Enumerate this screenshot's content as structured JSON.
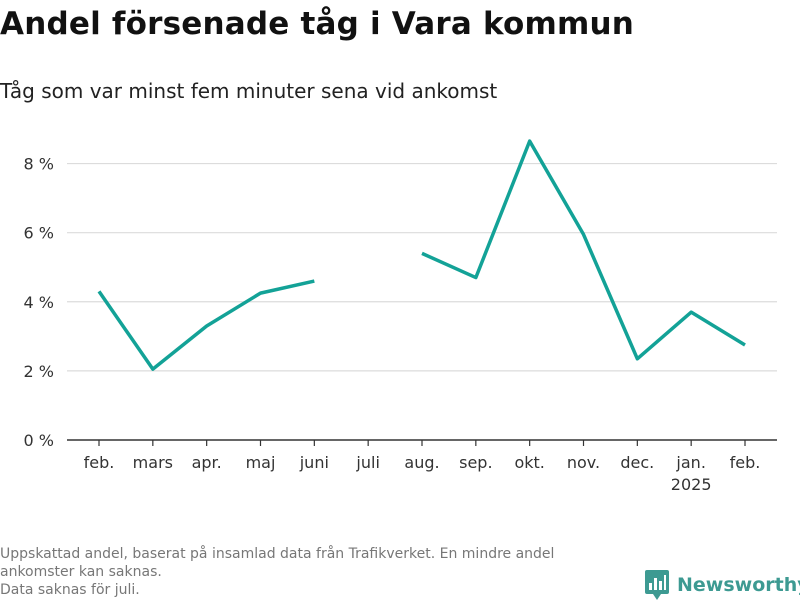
{
  "title": "Andel försenade tåg i Vara kommun",
  "subtitle": "Tåg som var minst fem minuter sena vid ankomst",
  "footnote": [
    "Uppskattad andel, baserat på insamlad data från Trafikverket. En mindre andel",
    "ankomster kan saknas.",
    "Data saknas för juli."
  ],
  "brand": {
    "name": "Newsworthy",
    "icon": "newsworthy-logo-icon",
    "color": "#3d9a92"
  },
  "chart_data": {
    "type": "line",
    "categories": [
      "feb.",
      "mars",
      "apr.",
      "maj",
      "juni",
      "juli",
      "aug.",
      "sep.",
      "okt.",
      "nov.",
      "dec.",
      "jan.",
      "feb."
    ],
    "category_sublabels": [
      "",
      "",
      "",
      "",
      "",
      "",
      "",
      "",
      "",
      "",
      "",
      "2025",
      ""
    ],
    "series": [
      {
        "values": [
          4.3,
          2.05,
          3.3,
          4.25,
          4.6,
          null,
          5.4,
          4.7,
          8.65,
          5.95,
          2.35,
          3.7,
          2.75
        ],
        "color": "#13a297"
      }
    ],
    "ylim": [
      0,
      9
    ],
    "yticks": [
      0,
      2,
      4,
      6,
      8
    ],
    "ytick_labels": [
      "0 %",
      "2 %",
      "4 %",
      "6 %",
      "8 %"
    ],
    "grid": true,
    "xlabel": "",
    "ylabel": ""
  }
}
